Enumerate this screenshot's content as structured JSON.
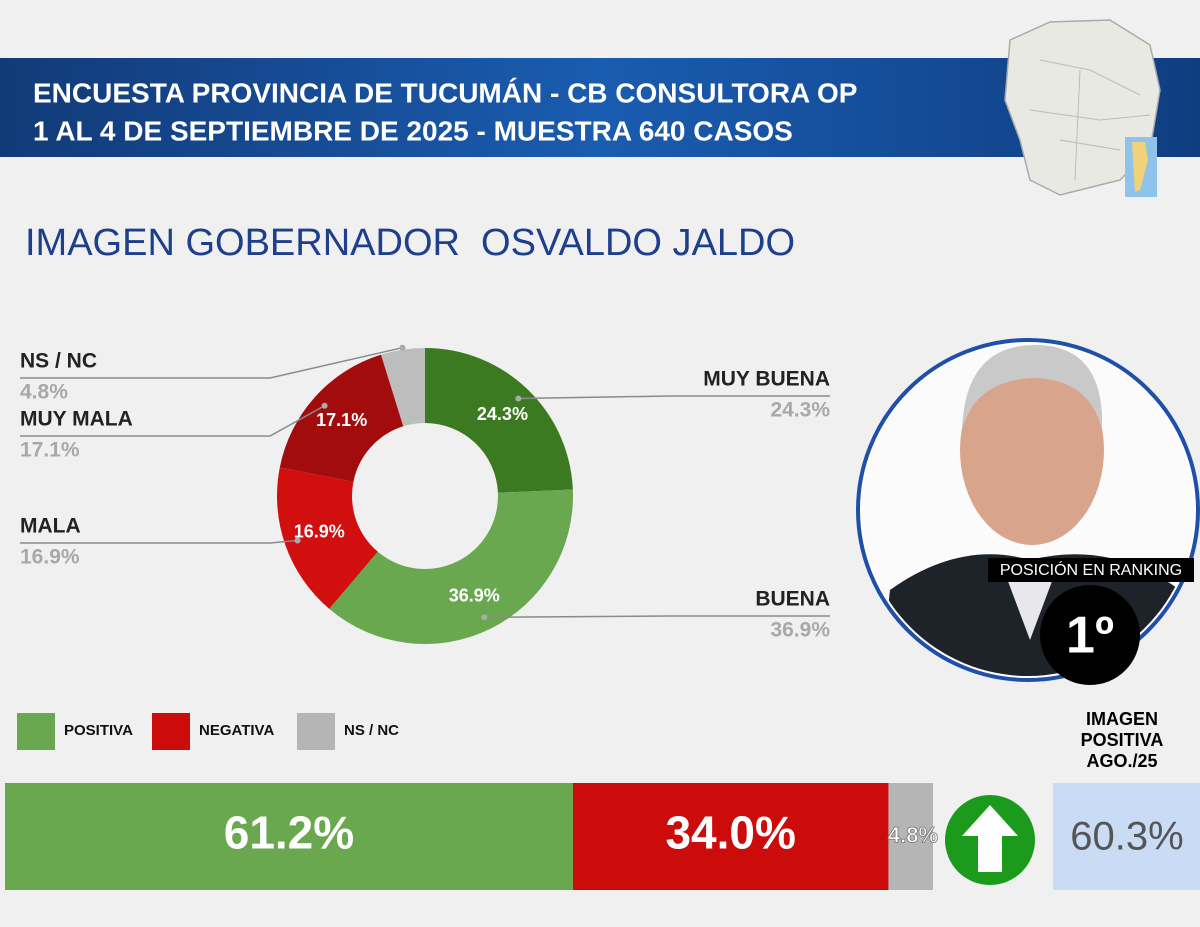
{
  "header": {
    "title_lines": [
      "ENCUESTA PROVINCIA DE TUCUMÁN - CB CONSULTORA OP",
      "1 AL 4 DE SEPTIEMBRE DE 2025 - MUESTRA 640 CASOS"
    ]
  },
  "chart_data": [
    {
      "type": "donut",
      "title": "IMAGEN GOBERNADOR  OSVALDO JALDO",
      "categories": [
        "MUY BUENA",
        "BUENA",
        "MALA",
        "MUY MALA",
        "NS / NC"
      ],
      "values": [
        24.3,
        36.9,
        16.9,
        17.1,
        4.8
      ],
      "value_labels": [
        "24.3%",
        "36.9%",
        "16.9%",
        "17.1%",
        "4.8%"
      ],
      "colors": [
        "#3b7a20",
        "#69a84f",
        "#d10f0f",
        "#a30c0c",
        "#bdbdbd"
      ]
    },
    {
      "type": "stacked-bar",
      "categories": [
        "POSITIVA",
        "NEGATIVA",
        "NS / NC"
      ],
      "values": [
        61.2,
        34.0,
        4.8
      ],
      "value_labels": [
        "61.2%",
        "34.0%",
        "4.8%"
      ],
      "colors": [
        "#69a84f",
        "#cc0b0b",
        "#b5b5b5"
      ]
    }
  ],
  "ranking": {
    "label": "POSICIÓN EN RANKING",
    "position": "1º"
  },
  "previous": {
    "label_lines": [
      "IMAGEN",
      "POSITIVA",
      "AGO./25"
    ],
    "value": 60.3,
    "value_label": "60.3%"
  }
}
